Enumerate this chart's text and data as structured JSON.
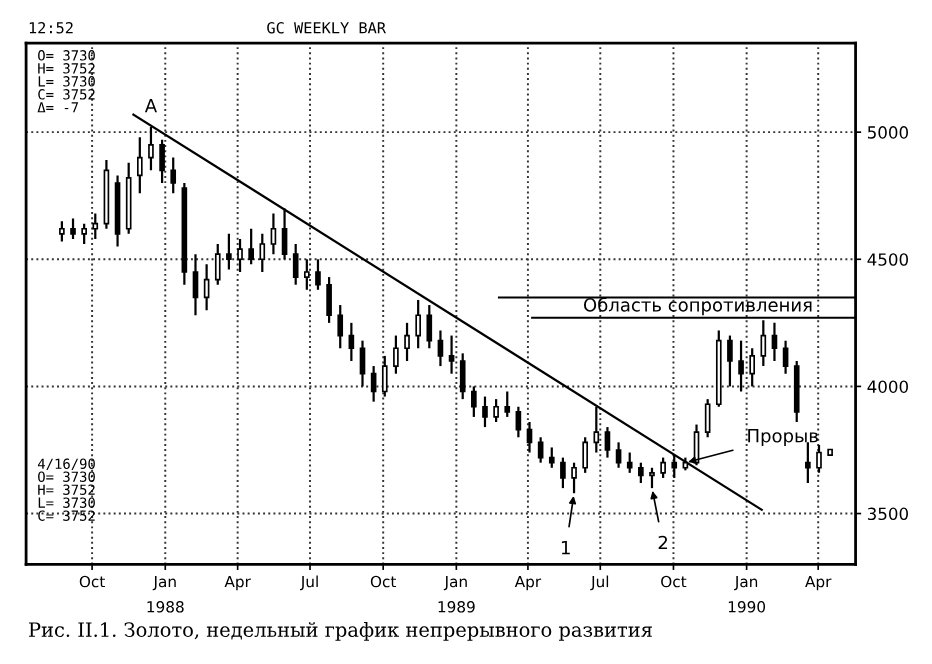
{
  "chart_data": {
    "type": "candlestick",
    "title": "GC WEEKLY BAR",
    "x": [
      "1987-08-24",
      "1987-09-07",
      "1987-09-21",
      "1987-10-05",
      "1987-10-19",
      "1987-11-02",
      "1987-11-16",
      "1987-11-30",
      "1987-12-14",
      "1987-12-28",
      "1988-01-11",
      "1988-01-25",
      "1988-02-08",
      "1988-02-22",
      "1988-03-07",
      "1988-03-21",
      "1988-04-04",
      "1988-04-18",
      "1988-05-02",
      "1988-05-16",
      "1988-05-30",
      "1988-06-13",
      "1988-06-27",
      "1988-07-11",
      "1988-07-25",
      "1988-08-08",
      "1988-08-22",
      "1988-09-05",
      "1988-09-19",
      "1988-10-03",
      "1988-10-17",
      "1988-10-31",
      "1988-11-14",
      "1988-11-28",
      "1988-12-12",
      "1988-12-26",
      "1989-01-09",
      "1989-01-23",
      "1989-02-06",
      "1989-02-20",
      "1989-03-06",
      "1989-03-20",
      "1989-04-03",
      "1989-04-17",
      "1989-05-01",
      "1989-05-15",
      "1989-05-29",
      "1989-06-12",
      "1989-06-26",
      "1989-07-10",
      "1989-07-24",
      "1989-08-07",
      "1989-08-21",
      "1989-09-04",
      "1989-09-18",
      "1989-10-02",
      "1989-10-16",
      "1989-10-30",
      "1989-11-13",
      "1989-11-27",
      "1989-12-11",
      "1989-12-25",
      "1990-01-08",
      "1990-01-22",
      "1990-02-05",
      "1990-02-19",
      "1990-03-05",
      "1990-03-19",
      "1990-04-02",
      "1990-04-16"
    ],
    "ohlc": [
      [
        4600,
        4650,
        4570,
        4620
      ],
      [
        4620,
        4660,
        4580,
        4600
      ],
      [
        4600,
        4640,
        4560,
        4620
      ],
      [
        4620,
        4680,
        4580,
        4640
      ],
      [
        4640,
        4890,
        4620,
        4850
      ],
      [
        4800,
        4830,
        4550,
        4600
      ],
      [
        4620,
        4880,
        4600,
        4820
      ],
      [
        4830,
        4980,
        4760,
        4900
      ],
      [
        4900,
        5020,
        4850,
        4950
      ],
      [
        4950,
        4970,
        4800,
        4850
      ],
      [
        4850,
        4900,
        4760,
        4800
      ],
      [
        4780,
        4800,
        4400,
        4450
      ],
      [
        4450,
        4520,
        4280,
        4350
      ],
      [
        4350,
        4480,
        4300,
        4420
      ],
      [
        4420,
        4560,
        4400,
        4520
      ],
      [
        4520,
        4600,
        4460,
        4500
      ],
      [
        4500,
        4580,
        4450,
        4540
      ],
      [
        4540,
        4620,
        4480,
        4500
      ],
      [
        4500,
        4600,
        4450,
        4560
      ],
      [
        4560,
        4680,
        4520,
        4620
      ],
      [
        4620,
        4700,
        4500,
        4520
      ],
      [
        4520,
        4560,
        4400,
        4430
      ],
      [
        4430,
        4500,
        4380,
        4450
      ],
      [
        4450,
        4500,
        4380,
        4400
      ],
      [
        4400,
        4430,
        4250,
        4280
      ],
      [
        4280,
        4320,
        4150,
        4200
      ],
      [
        4200,
        4250,
        4100,
        4150
      ],
      [
        4150,
        4180,
        4000,
        4050
      ],
      [
        4050,
        4080,
        3940,
        3980
      ],
      [
        3980,
        4120,
        3960,
        4080
      ],
      [
        4080,
        4200,
        4050,
        4150
      ],
      [
        4150,
        4250,
        4100,
        4200
      ],
      [
        4200,
        4340,
        4150,
        4280
      ],
      [
        4280,
        4320,
        4150,
        4180
      ],
      [
        4180,
        4220,
        4080,
        4120
      ],
      [
        4120,
        4200,
        4050,
        4100
      ],
      [
        4100,
        4130,
        3950,
        3980
      ],
      [
        3980,
        4000,
        3880,
        3920
      ],
      [
        3920,
        3960,
        3840,
        3880
      ],
      [
        3880,
        3950,
        3860,
        3920
      ],
      [
        3920,
        3980,
        3880,
        3900
      ],
      [
        3900,
        3920,
        3800,
        3830
      ],
      [
        3830,
        3860,
        3740,
        3780
      ],
      [
        3780,
        3800,
        3700,
        3720
      ],
      [
        3720,
        3760,
        3680,
        3700
      ],
      [
        3700,
        3720,
        3600,
        3640
      ],
      [
        3640,
        3700,
        3580,
        3680
      ],
      [
        3680,
        3800,
        3660,
        3780
      ],
      [
        3780,
        3920,
        3740,
        3820
      ],
      [
        3820,
        3840,
        3720,
        3750
      ],
      [
        3750,
        3780,
        3680,
        3700
      ],
      [
        3700,
        3740,
        3660,
        3680
      ],
      [
        3680,
        3700,
        3620,
        3650
      ],
      [
        3650,
        3680,
        3600,
        3660
      ],
      [
        3660,
        3720,
        3640,
        3700
      ],
      [
        3700,
        3730,
        3640,
        3680
      ],
      [
        3680,
        3720,
        3670,
        3700
      ],
      [
        3700,
        3850,
        3690,
        3820
      ],
      [
        3820,
        3950,
        3800,
        3930
      ],
      [
        3930,
        4220,
        3920,
        4180
      ],
      [
        4180,
        4200,
        4000,
        4100
      ],
      [
        4100,
        4180,
        3980,
        4050
      ],
      [
        4050,
        4150,
        4000,
        4120
      ],
      [
        4120,
        4260,
        4080,
        4200
      ],
      [
        4200,
        4250,
        4100,
        4150
      ],
      [
        4150,
        4180,
        4050,
        4080
      ],
      [
        4080,
        4100,
        3860,
        3900
      ],
      [
        3700,
        3780,
        3620,
        3680
      ],
      [
        3680,
        3770,
        3660,
        3740
      ],
      [
        3730,
        3752,
        3730,
        3752
      ]
    ],
    "series": [
      {
        "type": "line",
        "x": [
          "1987-11-22",
          "1990-01-20"
        ],
        "values": [
          5069,
          3515
        ],
        "color": "#000000"
      }
    ],
    "color": "#000000",
    "xlim": [
      "1987-07-10",
      "1990-05-18"
    ],
    "xticks": [
      {
        "value": "1987-10-01",
        "label": "Oct"
      },
      {
        "value": "1988-01-01",
        "label": "Jan\n1988"
      },
      {
        "value": "1988-04-01",
        "label": "Apr"
      },
      {
        "value": "1988-07-01",
        "label": "Jul"
      },
      {
        "value": "1988-10-01",
        "label": "Oct"
      },
      {
        "value": "1989-01-01",
        "label": "Jan\n1989"
      },
      {
        "value": "1989-04-01",
        "label": "Apr"
      },
      {
        "value": "1989-07-01",
        "label": "Jul"
      },
      {
        "value": "1989-10-01",
        "label": "Oct"
      },
      {
        "value": "1990-01-01",
        "label": "Jan\n1990"
      },
      {
        "value": "1990-04-01",
        "label": "Apr"
      }
    ],
    "ylim": [
      3300,
      5350
    ],
    "yticks": [
      3500,
      4000,
      4500,
      5000
    ],
    "grid": true,
    "line_style": "solid",
    "ref_lines": [
      {
        "axis": "y",
        "value": 4350,
        "label": "Область сопротивления"
      },
      {
        "axis": "y",
        "value": 4270
      }
    ],
    "annotations": [
      {
        "text": "A",
        "x": "1987-12-14",
        "y": 5020
      },
      {
        "text": "1",
        "x": "1989-05-29",
        "y": 3580
      },
      {
        "text": "2",
        "x": "1989-09-04",
        "y": 3600
      },
      {
        "text": "Прорыв",
        "x": "1989-10-16",
        "y": 3700
      },
      "12:52",
      "O= 3730\nH= 3752\nL= 3730\nC= 3752\nΔ= -7",
      "4/16/90\nO= 3730\nH= 3752\nL= 3730\nC= 3752",
      "Рис. II.1. Золото, недельный график непрерывного развития"
    ]
  }
}
